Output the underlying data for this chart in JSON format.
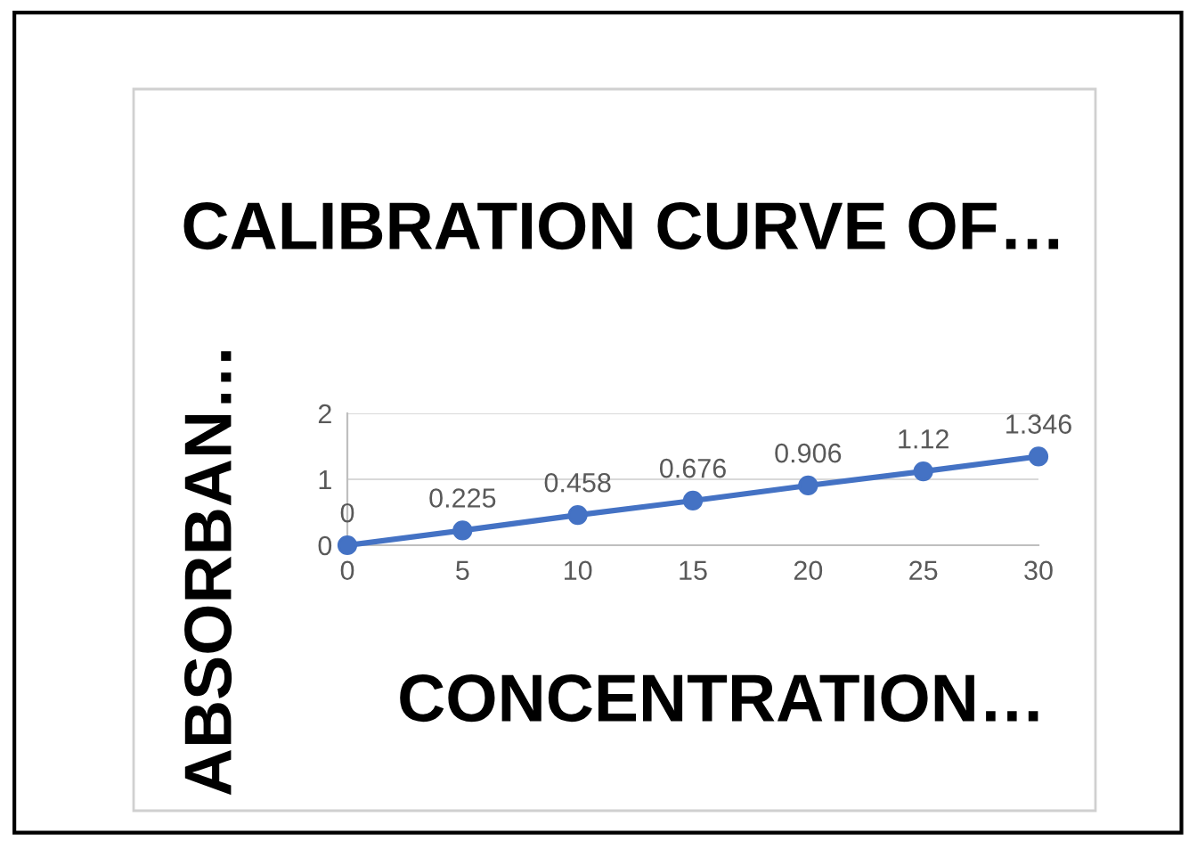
{
  "chart_data": {
    "type": "line",
    "title": "CALIBRATION CURVE OF…",
    "xlabel": "CONCENTRATION…",
    "ylabel": "ABSORBAN…",
    "x": [
      0,
      5,
      10,
      15,
      20,
      25,
      30
    ],
    "series": [
      {
        "color": "#4472c4",
        "values": [
          0,
          0.225,
          0.458,
          0.676,
          0.906,
          1.12,
          1.346
        ]
      }
    ],
    "xlim": [
      0,
      30
    ],
    "xticks": [
      0,
      5,
      10,
      15,
      20,
      25,
      30
    ],
    "ylim": [
      0,
      2
    ],
    "yticks": [
      0,
      1,
      2
    ],
    "grid": "y",
    "marker": "circle",
    "line_style": "solid",
    "data_labels": true
  }
}
